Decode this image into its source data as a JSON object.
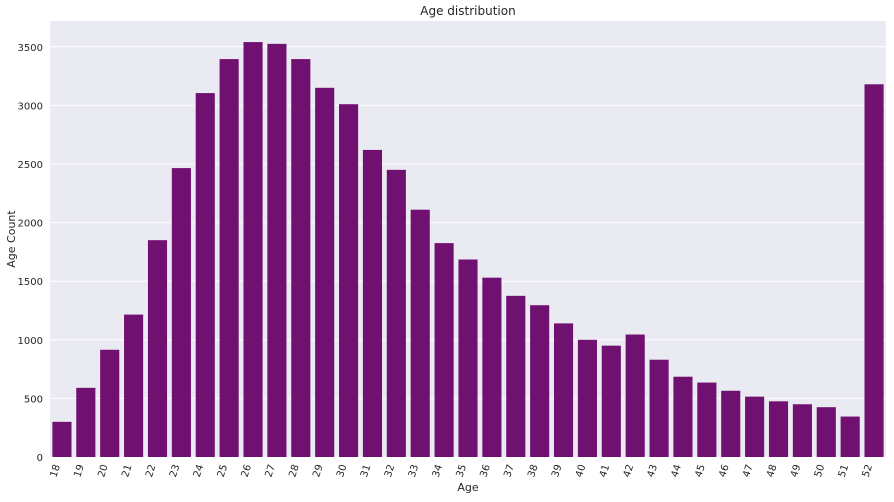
{
  "chart_data": {
    "type": "bar",
    "title": "Age distribution",
    "xlabel": "Age",
    "ylabel": "Age Count",
    "categories": [
      "18",
      "19",
      "20",
      "21",
      "22",
      "23",
      "24",
      "25",
      "26",
      "27",
      "28",
      "29",
      "30",
      "31",
      "32",
      "33",
      "34",
      "35",
      "36",
      "37",
      "38",
      "39",
      "40",
      "41",
      "42",
      "43",
      "44",
      "45",
      "46",
      "47",
      "48",
      "49",
      "50",
      "51",
      "52"
    ],
    "values": [
      300,
      590,
      915,
      1215,
      1850,
      2465,
      3105,
      3395,
      3540,
      3525,
      3395,
      3150,
      3010,
      2620,
      2450,
      2110,
      1825,
      1685,
      1530,
      1375,
      1295,
      1140,
      1000,
      950,
      1045,
      830,
      685,
      635,
      565,
      515,
      475,
      450,
      425,
      345,
      3180
    ],
    "yticks": [
      0,
      500,
      1000,
      1500,
      2000,
      2500,
      3000,
      3500
    ],
    "ylim": [
      0,
      3720
    ],
    "bar_color": "#701070",
    "background_color": "#eaeaf2",
    "grid": true,
    "grid_color": "#ffffff",
    "xtick_rotation": "rotated"
  }
}
